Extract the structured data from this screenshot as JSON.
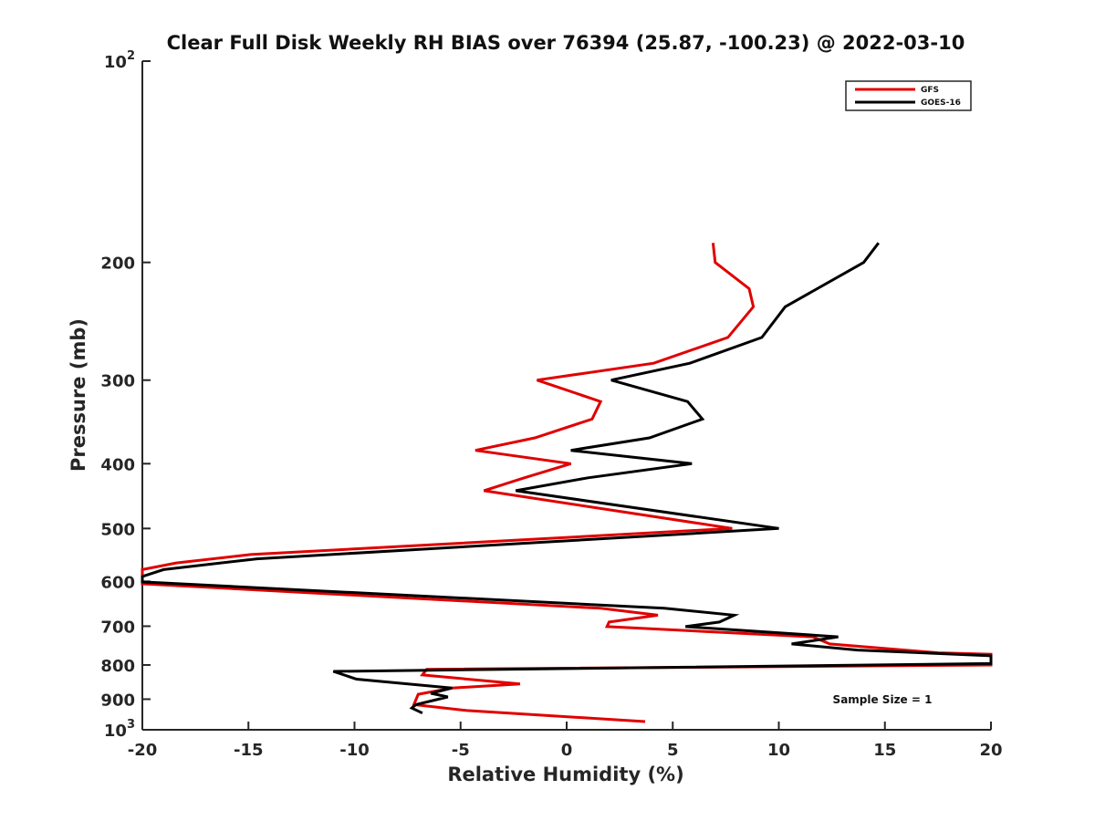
{
  "chart_data": {
    "type": "line",
    "title": "Clear Full Disk Weekly RH BIAS over 76394 (25.87, -100.23) @ 2022-03-10",
    "xlabel": "Relative Humidity (%)",
    "ylabel": "Pressure (mb)",
    "xlim": [
      -20,
      20
    ],
    "ylim": [
      100,
      1000
    ],
    "y_scale": "log",
    "y_reversed": true,
    "grid": false,
    "legend_position": "top-right",
    "x_ticks": [
      "-20",
      "-15",
      "-10",
      "-5",
      "0",
      "5",
      "10",
      "15",
      "20"
    ],
    "y_ticks": [
      {
        "value": 100,
        "base": "10",
        "exp": "2"
      },
      {
        "value": 200,
        "label": "200"
      },
      {
        "value": 300,
        "label": "300"
      },
      {
        "value": 400,
        "label": "400"
      },
      {
        "value": 500,
        "label": "500"
      },
      {
        "value": 600,
        "label": "600"
      },
      {
        "value": 700,
        "label": "700"
      },
      {
        "value": 800,
        "label": "800"
      },
      {
        "value": 900,
        "label": "900"
      },
      {
        "value": 1000,
        "base": "10",
        "exp": "3"
      }
    ],
    "annotation": "Sample Size = 1",
    "series": [
      {
        "name": "GFS",
        "color": "#e00000",
        "points": [
          [
            6.9,
            187
          ],
          [
            7.0,
            200
          ],
          [
            8.6,
            219
          ],
          [
            8.8,
            233
          ],
          [
            7.6,
            259
          ],
          [
            4.1,
            283
          ],
          [
            -1.4,
            300
          ],
          [
            1.6,
            323
          ],
          [
            1.2,
            343
          ],
          [
            -1.5,
            366
          ],
          [
            -4.3,
            382
          ],
          [
            0.2,
            400
          ],
          [
            -2.0,
            420
          ],
          [
            -3.9,
            439
          ],
          [
            7.8,
            500
          ],
          [
            -14.9,
            547
          ],
          [
            -18.4,
            563
          ],
          [
            -20.0,
            576
          ],
          [
            -20.0,
            605
          ],
          [
            1.6,
            658
          ],
          [
            4.3,
            674
          ],
          [
            2.0,
            690
          ],
          [
            1.9,
            701
          ],
          [
            11.6,
            726
          ],
          [
            12.4,
            744
          ],
          [
            17.5,
            767
          ],
          [
            20.0,
            771
          ],
          [
            20.0,
            800
          ],
          [
            -6.6,
            812
          ],
          [
            -6.8,
            828
          ],
          [
            -2.2,
            854
          ],
          [
            -5.4,
            866
          ],
          [
            -7.0,
            885
          ],
          [
            -7.2,
            917
          ],
          [
            -4.7,
            936
          ],
          [
            3.7,
            972
          ]
        ]
      },
      {
        "name": "GOES-16",
        "color": "#000000",
        "points": [
          [
            14.7,
            187
          ],
          [
            14.0,
            200
          ],
          [
            10.3,
            233
          ],
          [
            9.2,
            259
          ],
          [
            5.8,
            283
          ],
          [
            2.1,
            300
          ],
          [
            5.7,
            323
          ],
          [
            6.4,
            343
          ],
          [
            3.9,
            366
          ],
          [
            0.2,
            382
          ],
          [
            5.9,
            400
          ],
          [
            1.0,
            420
          ],
          [
            -2.4,
            439
          ],
          [
            10.0,
            500
          ],
          [
            -14.6,
            555
          ],
          [
            -19.0,
            576
          ],
          [
            -20.0,
            590
          ],
          [
            -20.0,
            601
          ],
          [
            4.6,
            658
          ],
          [
            7.9,
            674
          ],
          [
            7.2,
            690
          ],
          [
            5.6,
            701
          ],
          [
            12.8,
            726
          ],
          [
            10.6,
            744
          ],
          [
            13.7,
            760
          ],
          [
            20.0,
            775
          ],
          [
            20.0,
            796
          ],
          [
            -11.0,
            818
          ],
          [
            -9.9,
            840
          ],
          [
            -5.4,
            866
          ],
          [
            -6.4,
            882
          ],
          [
            -5.6,
            893
          ],
          [
            -7.1,
            917
          ],
          [
            -7.3,
            928
          ],
          [
            -6.8,
            944
          ]
        ]
      }
    ]
  }
}
